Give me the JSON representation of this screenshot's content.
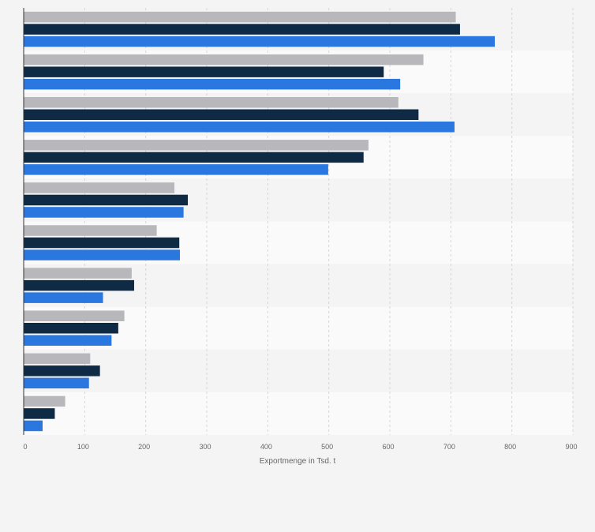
{
  "chart_data": {
    "type": "bar",
    "orientation": "horizontal",
    "categories": [
      "",
      "",
      "",
      "",
      "",
      "",
      "",
      "",
      "",
      ""
    ],
    "series": [
      {
        "color": "#b8b8bc",
        "values": [
          708,
          655,
          614,
          565,
          247,
          218,
          177,
          165,
          109,
          68
        ]
      },
      {
        "color": "#0f2a45",
        "values": [
          715,
          590,
          647,
          557,
          269,
          255,
          181,
          155,
          125,
          51
        ]
      },
      {
        "color": "#2a77e0",
        "values": [
          772,
          617,
          706,
          499,
          262,
          256,
          130,
          144,
          107,
          31
        ]
      }
    ],
    "xlabel": "Exportmenge in Tsd. t",
    "ylabel": "",
    "xlim": [
      0,
      900
    ],
    "xticks": [
      0,
      100,
      200,
      300,
      400,
      500,
      600,
      700,
      800,
      900
    ],
    "grid": "vertical-dashed",
    "legend": "none"
  }
}
